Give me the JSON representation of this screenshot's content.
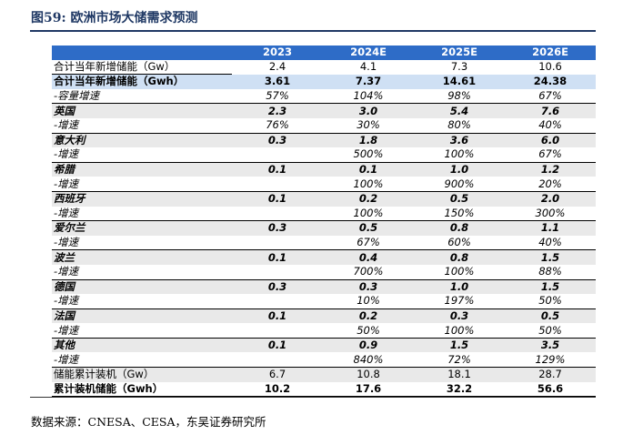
{
  "title": "图59:  欧洲市场大储需求预测",
  "source": "数据来源：CNESA、CESA，东吴证券研究所",
  "columns": [
    "",
    "2023",
    "2024E",
    "2025E",
    "2026E"
  ],
  "rows": [
    {
      "label": "合计当年新增储能（Gw）",
      "type": "plain",
      "values": [
        "2.4",
        "4.1",
        "7.3",
        "10.6"
      ]
    },
    {
      "label": "合计当年新增储能（Gwh）",
      "type": "total",
      "values": [
        "3.61",
        "7.37",
        "14.61",
        "24.38"
      ]
    },
    {
      "label": "-容量增速",
      "type": "growth",
      "values": [
        "57%",
        "104%",
        "98%",
        "67%"
      ]
    },
    {
      "label": "英国",
      "type": "country",
      "values": [
        "2.3",
        "3.0",
        "5.4",
        "7.6"
      ]
    },
    {
      "label": "-增速",
      "type": "growth",
      "values": [
        "76%",
        "30%",
        "80%",
        "40%"
      ]
    },
    {
      "label": "意大利",
      "type": "country",
      "values": [
        "0.3",
        "1.8",
        "3.6",
        "6.0"
      ]
    },
    {
      "label": "-增速",
      "type": "growth",
      "values": [
        "",
        "500%",
        "100%",
        "67%"
      ]
    },
    {
      "label": "希腊",
      "type": "country",
      "values": [
        "0.1",
        "0.1",
        "1.0",
        "1.2"
      ]
    },
    {
      "label": "-增速",
      "type": "growth",
      "values": [
        "",
        "100%",
        "900%",
        "20%"
      ]
    },
    {
      "label": "西班牙",
      "type": "country",
      "values": [
        "0.1",
        "0.2",
        "0.5",
        "2.0"
      ]
    },
    {
      "label": "-增速",
      "type": "growth",
      "values": [
        "",
        "100%",
        "150%",
        "300%"
      ]
    },
    {
      "label": "爱尔兰",
      "type": "country",
      "values": [
        "0.3",
        "0.5",
        "0.8",
        "1.1"
      ]
    },
    {
      "label": "-增速",
      "type": "growth",
      "values": [
        "",
        "67%",
        "60%",
        "40%"
      ]
    },
    {
      "label": "波兰",
      "type": "country",
      "values": [
        "0.1",
        "0.4",
        "0.8",
        "1.5"
      ]
    },
    {
      "label": "-增速",
      "type": "growth",
      "values": [
        "",
        "700%",
        "100%",
        "88%"
      ]
    },
    {
      "label": "德国",
      "type": "country",
      "values": [
        "0.3",
        "0.3",
        "1.0",
        "1.5"
      ]
    },
    {
      "label": "-增速",
      "type": "growth",
      "values": [
        "",
        "10%",
        "197%",
        "50%"
      ]
    },
    {
      "label": "法国",
      "type": "country",
      "values": [
        "0.1",
        "0.2",
        "0.3",
        "0.5"
      ]
    },
    {
      "label": "-增速",
      "type": "growth",
      "values": [
        "",
        "50%",
        "100%",
        "50%"
      ]
    },
    {
      "label": "其他",
      "type": "country",
      "values": [
        "0.1",
        "0.9",
        "1.5",
        "3.5"
      ]
    },
    {
      "label": "-增速",
      "type": "growth",
      "values": [
        "",
        "840%",
        "72%",
        "129%"
      ]
    },
    {
      "label": "储能累计装机（Gw）",
      "type": "plain",
      "values": [
        "6.7",
        "10.8",
        "18.1",
        "28.7"
      ]
    },
    {
      "label": "累计装机储能（Gwh）",
      "type": "cumtotal",
      "values": [
        "10.2",
        "17.6",
        "32.2",
        "56.6"
      ]
    }
  ]
}
